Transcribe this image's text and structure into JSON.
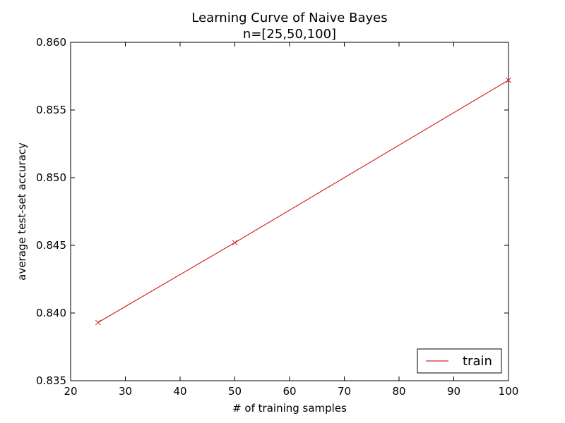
{
  "chart_data": {
    "type": "line",
    "title": "Learning Curve of Naive Bayes",
    "subtitle": "n=[25,50,100]",
    "xlabel": "# of training samples",
    "ylabel": "average test-set accuracy",
    "xlim": [
      20,
      100
    ],
    "ylim": [
      0.835,
      0.86
    ],
    "x_ticks": [
      "20",
      "30",
      "40",
      "50",
      "60",
      "70",
      "80",
      "90",
      "100"
    ],
    "y_ticks": [
      "0.835",
      "0.840",
      "0.845",
      "0.850",
      "0.855",
      "0.860"
    ],
    "grid": false,
    "legend_position": "bottom-right",
    "series": [
      {
        "name": "train",
        "color": "#d62728",
        "marker": "x",
        "x": [
          25,
          50,
          100
        ],
        "y": [
          0.8393,
          0.8452,
          0.8572
        ]
      }
    ]
  }
}
